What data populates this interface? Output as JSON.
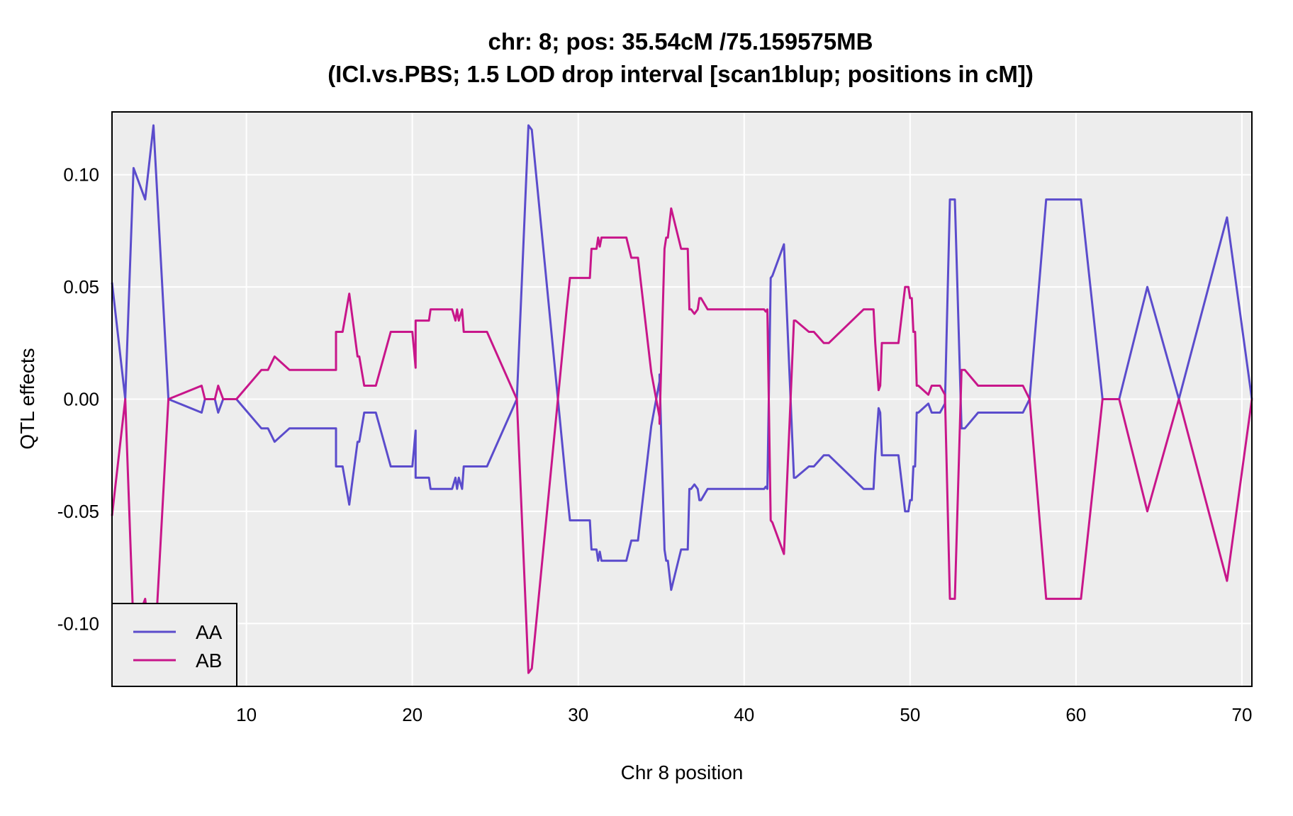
{
  "chart_data": {
    "type": "line",
    "title_line1": "chr: 8; pos: 35.54cM /75.159575MB",
    "title_line2": "(ICl.vs.PBS; 1.5 LOD drop interval [scan1blup; positions in cM])",
    "xlabel": "Chr 8 position",
    "ylabel": "QTL effects",
    "xlim": [
      1.9,
      70.6
    ],
    "ylim": [
      -0.128,
      0.128
    ],
    "xticks": [
      10,
      20,
      30,
      40,
      50,
      60,
      70
    ],
    "yticks": [
      -0.1,
      -0.05,
      0.0,
      0.05,
      0.1
    ],
    "ytick_labels": [
      "-0.10",
      "-0.05",
      "0.00",
      "0.05",
      "0.10"
    ],
    "grid": true,
    "legend_position": "bottom-left",
    "colors": {
      "panel_bg": "#ededed",
      "grid": "#ffffff",
      "AA": "#5b4ccc",
      "AB": "#c8168a"
    },
    "series": [
      {
        "name": "AA",
        "x": [
          1.9,
          2.7,
          3.2,
          3.9,
          4.4,
          5.3,
          7.3,
          7.5,
          8.1,
          8.3,
          8.6,
          9.4,
          10.9,
          11.3,
          11.7,
          12.6,
          14.4,
          14.5,
          15.4,
          15.4,
          15.8,
          16.2,
          16.7,
          16.8,
          17.1,
          17.8,
          18.7,
          20.0,
          20.2,
          20.2,
          20.3,
          21.0,
          21.1,
          22.4,
          22.6,
          22.7,
          22.8,
          23.0,
          23.1,
          24.5,
          26.3,
          27.0,
          27.2,
          29.3,
          29.5,
          30.7,
          30.8,
          31.1,
          31.2,
          31.3,
          31.4,
          32.9,
          33.2,
          33.6,
          34.4,
          34.9,
          34.9,
          35.2,
          35.3,
          35.4,
          35.6,
          36.2,
          36.6,
          36.7,
          36.8,
          37.0,
          37.2,
          37.3,
          37.4,
          37.8,
          38.2,
          41.2,
          41.3,
          41.4,
          41.6,
          41.7,
          42.4,
          43.0,
          43.1,
          43.9,
          44.2,
          44.8,
          45.0,
          45.1,
          47.2,
          47.8,
          47.9,
          48.1,
          48.2,
          48.3,
          49.3,
          49.7,
          49.9,
          50.0,
          50.1,
          50.2,
          50.3,
          50.4,
          50.5,
          51.1,
          51.3,
          51.8,
          52.1,
          52.4,
          52.7,
          53.1,
          53.2,
          53.3,
          54.1,
          54.9,
          56.8,
          57.2,
          58.2,
          60.3,
          61.6,
          62.6,
          64.3,
          66.2,
          69.1,
          70.6
        ],
        "y": [
          0.052,
          0.0,
          0.103,
          0.089,
          0.122,
          0.0,
          -0.006,
          0.0,
          0.0,
          -0.006,
          0.0,
          0.0,
          -0.013,
          -0.013,
          -0.019,
          -0.013,
          -0.013,
          -0.013,
          -0.013,
          -0.03,
          -0.03,
          -0.047,
          -0.019,
          -0.019,
          -0.006,
          -0.006,
          -0.03,
          -0.03,
          -0.014,
          -0.035,
          -0.035,
          -0.035,
          -0.04,
          -0.04,
          -0.035,
          -0.04,
          -0.035,
          -0.04,
          -0.03,
          -0.03,
          0.0,
          0.122,
          0.12,
          -0.04,
          -0.054,
          -0.054,
          -0.067,
          -0.067,
          -0.072,
          -0.068,
          -0.072,
          -0.072,
          -0.063,
          -0.063,
          -0.012,
          0.008,
          0.011,
          -0.067,
          -0.072,
          -0.072,
          -0.085,
          -0.067,
          -0.067,
          -0.04,
          -0.04,
          -0.038,
          -0.04,
          -0.045,
          -0.045,
          -0.04,
          -0.04,
          -0.04,
          -0.039,
          -0.04,
          0.054,
          0.055,
          0.069,
          -0.035,
          -0.035,
          -0.03,
          -0.03,
          -0.025,
          -0.025,
          -0.025,
          -0.04,
          -0.04,
          -0.025,
          -0.004,
          -0.006,
          -0.025,
          -0.025,
          -0.05,
          -0.05,
          -0.045,
          -0.045,
          -0.03,
          -0.03,
          -0.006,
          -0.006,
          -0.002,
          -0.006,
          -0.006,
          -0.002,
          0.089,
          0.089,
          -0.013,
          -0.013,
          -0.013,
          -0.006,
          -0.006,
          -0.006,
          0.0,
          0.089,
          0.089,
          0.0,
          0.0,
          0.05,
          0.0,
          0.081,
          0.0
        ]
      },
      {
        "name": "AB",
        "x": [
          1.9,
          2.7,
          3.2,
          3.9,
          4.4,
          5.3,
          7.3,
          7.5,
          8.1,
          8.3,
          8.6,
          9.4,
          10.9,
          11.3,
          11.7,
          12.6,
          14.4,
          14.5,
          15.4,
          15.4,
          15.8,
          16.2,
          16.7,
          16.8,
          17.1,
          17.8,
          18.7,
          20.0,
          20.2,
          20.2,
          20.3,
          21.0,
          21.1,
          22.4,
          22.6,
          22.7,
          22.8,
          23.0,
          23.1,
          24.5,
          26.3,
          27.0,
          27.2,
          29.3,
          29.5,
          30.7,
          30.8,
          31.1,
          31.2,
          31.3,
          31.4,
          32.9,
          33.2,
          33.6,
          34.4,
          34.9,
          34.9,
          35.2,
          35.3,
          35.4,
          35.6,
          36.2,
          36.6,
          36.7,
          36.8,
          37.0,
          37.2,
          37.3,
          37.4,
          37.8,
          38.2,
          41.2,
          41.3,
          41.4,
          41.6,
          41.7,
          42.4,
          43.0,
          43.1,
          43.9,
          44.2,
          44.8,
          45.0,
          45.1,
          47.2,
          47.8,
          47.9,
          48.1,
          48.2,
          48.3,
          49.3,
          49.7,
          49.9,
          50.0,
          50.1,
          50.2,
          50.3,
          50.4,
          50.5,
          51.1,
          51.3,
          51.8,
          52.1,
          52.4,
          52.7,
          53.1,
          53.2,
          53.3,
          54.1,
          54.9,
          56.8,
          57.2,
          58.2,
          60.3,
          61.6,
          62.6,
          64.3,
          66.2,
          69.1,
          70.6
        ],
        "y": [
          -0.052,
          0.0,
          -0.103,
          -0.089,
          -0.122,
          0.0,
          0.006,
          0.0,
          0.0,
          0.006,
          0.0,
          0.0,
          0.013,
          0.013,
          0.019,
          0.013,
          0.013,
          0.013,
          0.013,
          0.03,
          0.03,
          0.047,
          0.019,
          0.019,
          0.006,
          0.006,
          0.03,
          0.03,
          0.014,
          0.035,
          0.035,
          0.035,
          0.04,
          0.04,
          0.035,
          0.04,
          0.035,
          0.04,
          0.03,
          0.03,
          0.0,
          -0.122,
          -0.12,
          0.04,
          0.054,
          0.054,
          0.067,
          0.067,
          0.072,
          0.068,
          0.072,
          0.072,
          0.063,
          0.063,
          0.012,
          -0.008,
          -0.011,
          0.067,
          0.072,
          0.072,
          0.085,
          0.067,
          0.067,
          0.04,
          0.04,
          0.038,
          0.04,
          0.045,
          0.045,
          0.04,
          0.04,
          0.04,
          0.039,
          0.04,
          -0.054,
          -0.055,
          -0.069,
          0.035,
          0.035,
          0.03,
          0.03,
          0.025,
          0.025,
          0.025,
          0.04,
          0.04,
          0.025,
          0.004,
          0.006,
          0.025,
          0.025,
          0.05,
          0.05,
          0.045,
          0.045,
          0.03,
          0.03,
          0.006,
          0.006,
          0.002,
          0.006,
          0.006,
          0.002,
          -0.089,
          -0.089,
          0.013,
          0.013,
          0.013,
          0.006,
          0.006,
          0.006,
          0.0,
          -0.089,
          -0.089,
          0.0,
          0.0,
          -0.05,
          0.0,
          -0.081,
          0.0
        ]
      }
    ]
  }
}
